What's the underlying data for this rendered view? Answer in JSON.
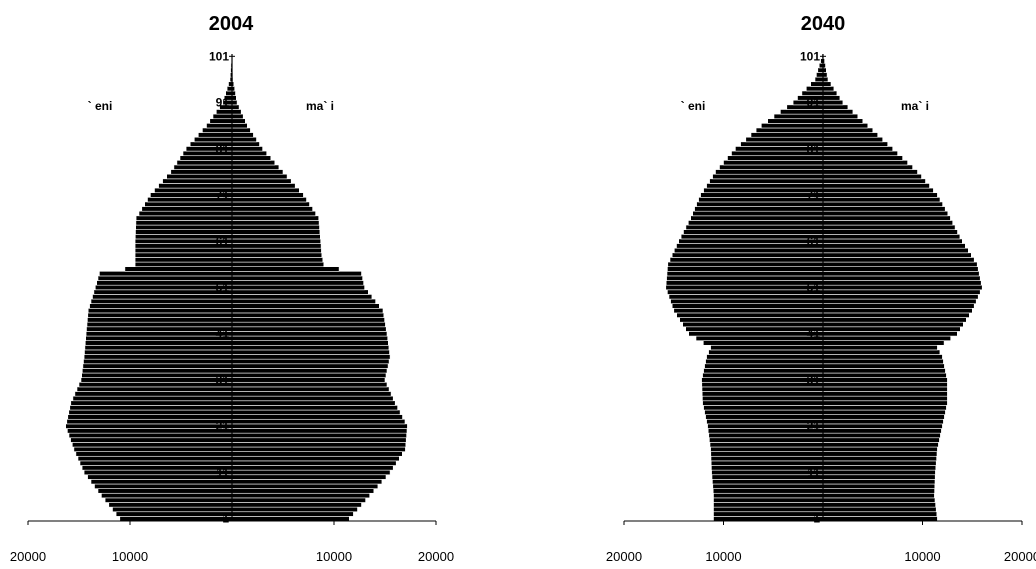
{
  "chart_data": [
    {
      "type": "bar",
      "orientation": "horizontal-population-pyramid",
      "title": "2004",
      "legend": [
        "` eni",
        "ma` i"
      ],
      "xticks": [
        "20000",
        "10000",
        "10000",
        "20000"
      ],
      "yticks": [
        "1",
        "11",
        "21",
        "31",
        "41",
        "51",
        "61",
        "71",
        "81",
        "91",
        "101"
      ],
      "xlim": [
        0,
        20000
      ],
      "age_points": [
        1,
        6,
        11,
        16,
        21,
        26,
        31,
        36,
        41,
        46,
        51,
        54,
        55,
        56,
        58,
        61,
        66,
        71,
        76,
        81,
        86,
        91,
        96,
        101
      ],
      "series": [
        {
          "name": "` eni",
          "values": [
            11000,
            12800,
            14500,
            15500,
            16300,
            15800,
            14800,
            14500,
            14300,
            14100,
            13400,
            13000,
            10500,
            9500,
            9500,
            9500,
            9400,
            8000,
            6000,
            4500,
            2500,
            900,
            200,
            50
          ]
        },
        {
          "name": "ma` i",
          "values": [
            11500,
            13500,
            15500,
            17000,
            17200,
            16000,
            15000,
            15500,
            15200,
            14800,
            13000,
            12700,
            10500,
            9000,
            8800,
            8700,
            8500,
            7000,
            5000,
            3000,
            1500,
            500,
            100,
            20
          ]
        }
      ]
    },
    {
      "type": "bar",
      "orientation": "horizontal-population-pyramid",
      "title": "2040",
      "legend": [
        "` eni",
        "ma` i"
      ],
      "xticks": [
        "20000",
        "10000",
        "10000",
        "20000"
      ],
      "yticks": [
        "1",
        "11",
        "21",
        "31",
        "41",
        "51",
        "61",
        "71",
        "81",
        "91",
        "101"
      ],
      "xlim": [
        0,
        20000
      ],
      "age_points": [
        1,
        6,
        11,
        16,
        21,
        26,
        31,
        36,
        38,
        41,
        46,
        51,
        56,
        61,
        66,
        71,
        76,
        81,
        86,
        91,
        96,
        101
      ],
      "series": [
        {
          "name": "` eni",
          "values": [
            11000,
            11000,
            11200,
            11300,
            11600,
            12100,
            12200,
            11700,
            11300,
            13500,
            15000,
            15800,
            15600,
            14500,
            13300,
            12300,
            10800,
            8800,
            6200,
            3000,
            800,
            100
          ]
        },
        {
          "name": "ma` i",
          "values": [
            11500,
            11200,
            11300,
            11500,
            12000,
            12500,
            12500,
            12000,
            11500,
            13500,
            15000,
            16000,
            15500,
            14000,
            12800,
            11500,
            9500,
            7000,
            4500,
            2000,
            500,
            80
          ]
        }
      ]
    }
  ],
  "colors": {
    "bar_fill": "#000000",
    "bar_stripe": "#ffffff",
    "axis": "#000000"
  }
}
